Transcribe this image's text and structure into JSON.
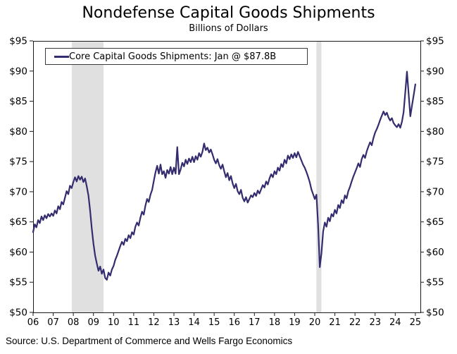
{
  "chart": {
    "title": "Nondefense Capital Goods Shipments",
    "subtitle": "Billions of Dollars",
    "legend": {
      "label": "Core Capital Goods Shipments: Jan @ $87.8B"
    },
    "source": "Source: U.S. Department of Commerce and Wells Fargo Economics"
  },
  "chart_data": {
    "type": "line",
    "title": "Nondefense Capital Goods Shipments",
    "subtitle": "Billions of Dollars",
    "ylabel_left": "Billions of Dollars",
    "ylim": [
      50,
      95
    ],
    "y_tick_step": 5,
    "y_tick_prefix": "$",
    "grid": false,
    "legend_position": "top-left",
    "x_domain": [
      2006,
      2025.25
    ],
    "x_tick_years": [
      2006,
      2007,
      2008,
      2009,
      2010,
      2011,
      2012,
      2013,
      2014,
      2015,
      2016,
      2017,
      2018,
      2019,
      2020,
      2021,
      2022,
      2023,
      2024,
      2025
    ],
    "x_tick_labels": [
      "06",
      "07",
      "08",
      "09",
      "10",
      "11",
      "12",
      "13",
      "14",
      "15",
      "16",
      "17",
      "18",
      "19",
      "20",
      "21",
      "22",
      "23",
      "24",
      "25"
    ],
    "line_color": "#332c6e",
    "band_color": "#e0e0e0",
    "axis_color": "#1a1a1a",
    "recession_bands": [
      {
        "start": 2007.92,
        "end": 2009.5
      },
      {
        "start": 2020.08,
        "end": 2020.33
      }
    ],
    "series": [
      {
        "name": "Core Capital Goods Shipments",
        "latest_point_label": "Jan @ $87.8B",
        "start_year": 2006,
        "frequency": "monthly",
        "values": [
          63.3,
          64.6,
          64.1,
          65.3,
          64.8,
          65.9,
          65.3,
          66.1,
          65.6,
          66.3,
          65.9,
          66.4,
          66.0,
          66.9,
          66.4,
          67.6,
          67.1,
          68.3,
          67.9,
          69.0,
          70.1,
          69.6,
          71.0,
          70.6,
          71.6,
          72.4,
          71.7,
          72.6,
          72.0,
          72.5,
          71.6,
          72.2,
          70.9,
          69.4,
          66.9,
          63.9,
          61.4,
          59.4,
          58.1,
          56.9,
          57.6,
          56.4,
          57.1,
          55.7,
          55.4,
          56.6,
          56.1,
          57.1,
          57.7,
          58.7,
          59.4,
          60.2,
          61.0,
          61.7,
          61.2,
          62.2,
          61.8,
          62.8,
          62.3,
          63.3,
          62.9,
          64.2,
          64.9,
          64.4,
          65.7,
          66.7,
          66.2,
          67.7,
          68.8,
          68.3,
          69.5,
          70.3,
          71.8,
          73.2,
          74.3,
          73.0,
          74.5,
          72.9,
          73.4,
          72.3,
          73.6,
          73.0,
          74.1,
          72.9,
          74.0,
          73.0,
          77.4,
          72.9,
          73.7,
          74.8,
          74.2,
          75.3,
          74.6,
          75.5,
          74.9,
          75.8,
          74.9,
          75.9,
          75.3,
          76.4,
          75.8,
          76.6,
          78.0,
          76.9,
          77.3,
          76.5,
          77.0,
          76.2,
          75.3,
          74.7,
          75.4,
          74.4,
          73.8,
          74.5,
          73.4,
          72.4,
          73.1,
          71.9,
          72.6,
          71.4,
          70.6,
          71.3,
          70.1,
          69.6,
          70.3,
          69.0,
          68.4,
          69.1,
          68.2,
          68.8,
          69.4,
          69.1,
          69.8,
          69.3,
          70.2,
          69.7,
          70.4,
          71.1,
          70.7,
          71.7,
          71.2,
          72.2,
          72.9,
          72.4,
          73.4,
          72.9,
          74.0,
          73.5,
          74.6,
          74.1,
          75.3,
          74.7,
          76.0,
          75.4,
          76.2,
          75.6,
          76.4,
          75.7,
          76.6,
          75.9,
          75.2,
          74.5,
          74.0,
          73.3,
          72.5,
          71.6,
          70.4,
          69.6,
          68.8,
          69.5,
          64.5,
          57.5,
          59.8,
          63.4,
          64.9,
          64.2,
          65.7,
          65.1,
          66.3,
          65.9,
          67.0,
          66.4,
          67.8,
          67.3,
          68.6,
          68.1,
          69.4,
          68.9,
          70.1,
          70.8,
          71.7,
          72.5,
          73.2,
          73.9,
          74.7,
          74.1,
          75.4,
          76.1,
          75.6,
          76.7,
          77.5,
          78.2,
          77.7,
          78.9,
          79.8,
          80.4,
          81.1,
          81.9,
          82.6,
          83.3,
          82.7,
          83.1,
          82.3,
          81.8,
          82.2,
          81.4,
          81.0,
          80.7,
          81.2,
          80.6,
          81.6,
          83.2,
          86.5,
          89.9,
          86.2,
          82.5,
          84.3,
          86.0,
          87.8
        ]
      }
    ]
  }
}
